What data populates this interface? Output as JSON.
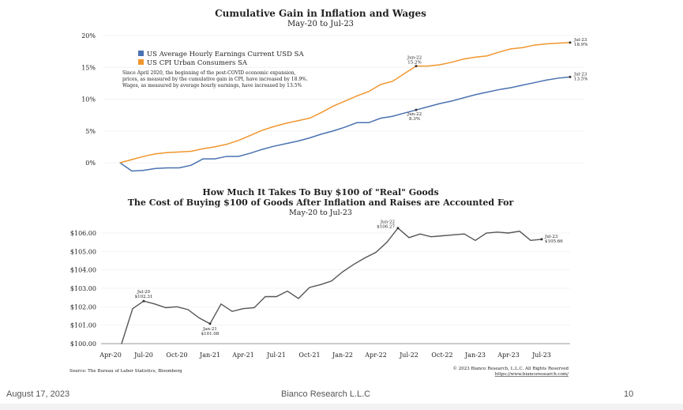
{
  "chart_data": [
    {
      "type": "line",
      "title": "Cumulative Gain in Inflation and Wages",
      "subtitle": "May-20 to Jul-23",
      "y_ticks": [
        "0%",
        "5%",
        "10%",
        "15%",
        "20%"
      ],
      "ylim": [
        0,
        20
      ],
      "x_start": "May-20",
      "x_end": "Jul-23",
      "grid": true,
      "legend_position": "top-left",
      "note": "Since April 2020, the beginning of the post-COVID economic expansion, prices, as measured by the cumulative gain in CPI, have increased by 18.9%. Wages, as measured by average hourly earnings, have increased by 13.5%",
      "note_lines": [
        "Since April 2020, the beginning of the post-COVID economic expansion,",
        "prices, as measured by the cumulative gain in CPI, have increased by 18.9%.",
        "Wages, as measured by average hourly earnings, have increased by 13.5%"
      ],
      "series": [
        {
          "name": "US Average Hourly Earnings Current USD SA",
          "color": "#4a72b0",
          "values": [
            0,
            -1.3,
            -1.2,
            -0.9,
            -0.8,
            -0.8,
            -0.4,
            0.6,
            0.6,
            1.0,
            1.0,
            1.5,
            2.1,
            2.6,
            3.0,
            3.4,
            3.9,
            4.5,
            5.0,
            5.6,
            6.3,
            6.3,
            7.0,
            7.3,
            7.8,
            8.3,
            8.8,
            9.3,
            9.7,
            10.2,
            10.7,
            11.1,
            11.5,
            11.8,
            12.2,
            12.6,
            13.0,
            13.3,
            13.5
          ]
        },
        {
          "name": "US CPI Urban Consumers SA",
          "color": "#f0962e",
          "values": [
            0,
            0.5,
            1.0,
            1.4,
            1.6,
            1.7,
            1.8,
            2.2,
            2.5,
            2.9,
            3.5,
            4.3,
            5.1,
            5.7,
            6.2,
            6.6,
            7.0,
            7.9,
            8.9,
            9.7,
            10.5,
            11.2,
            12.3,
            12.8,
            14.0,
            15.2,
            15.2,
            15.4,
            15.8,
            16.3,
            16.6,
            16.8,
            17.4,
            17.9,
            18.1,
            18.5,
            18.7,
            18.8,
            18.9
          ]
        }
      ],
      "annotations": [
        {
          "series": 1,
          "index": 25,
          "label": "Jun-22",
          "value": "15.2%"
        },
        {
          "series": 1,
          "index": 38,
          "label": "Jul-23",
          "value": "18.9%"
        },
        {
          "series": 0,
          "index": 25,
          "label": "Jun-22",
          "value": "8.3%"
        },
        {
          "series": 0,
          "index": 38,
          "label": "Jul-23",
          "value": "13.5%"
        }
      ]
    },
    {
      "type": "line",
      "title": "How Much It Takes To Buy $100 of \"Real\" Goods",
      "subtitle": "The Cost of Buying $100 of Goods After Inflation and Raises are Accounted For",
      "date_range": "May-20 to Jul-23",
      "y_ticks": [
        "$100.00",
        "$101.00",
        "$102.00",
        "$103.00",
        "$104.00",
        "$105.00",
        "$106.00"
      ],
      "ylim": [
        100,
        106
      ],
      "x_ticks": [
        "Apr-20",
        "Jul-20",
        "Oct-20",
        "Jan-21",
        "Apr-21",
        "Jul-21",
        "Oct-21",
        "Jan-22",
        "Apr-22",
        "Jul-22",
        "Oct-22",
        "Jan-23",
        "Apr-23",
        "Jul-23"
      ],
      "grid": true,
      "series": [
        {
          "color": "#555555",
          "values": [
            100,
            101.9,
            102.31,
            102.15,
            101.95,
            102.0,
            101.85,
            101.4,
            101.08,
            102.15,
            101.75,
            101.9,
            101.95,
            102.55,
            102.55,
            102.85,
            102.45,
            103.05,
            103.2,
            103.4,
            103.9,
            104.3,
            104.65,
            104.95,
            105.5,
            106.27,
            105.75,
            105.95,
            105.8,
            105.85,
            105.9,
            105.95,
            105.6,
            106.0,
            106.05,
            106.0,
            106.1,
            105.6,
            105.66
          ]
        }
      ],
      "annotations": [
        {
          "index": 2,
          "label": "Jul-20",
          "value": "$102.31"
        },
        {
          "index": 8,
          "label": "Jan-21",
          "value": "$101.08"
        },
        {
          "index": 25,
          "label": "Jun-22",
          "value": "$106.27"
        },
        {
          "index": 38,
          "label": "Jul-23",
          "value": "$105.66"
        }
      ],
      "source": "Source: The Bureau of Labor Statistics, Bloomberg",
      "copyright": "© 2023 Bianco Research, L.L.C. All Rights Reserved",
      "url": "https://www.biancoresearch.com/"
    }
  ],
  "footer": {
    "date": "August 17, 2023",
    "company": "Bianco Research L.L.C",
    "page": "10"
  }
}
